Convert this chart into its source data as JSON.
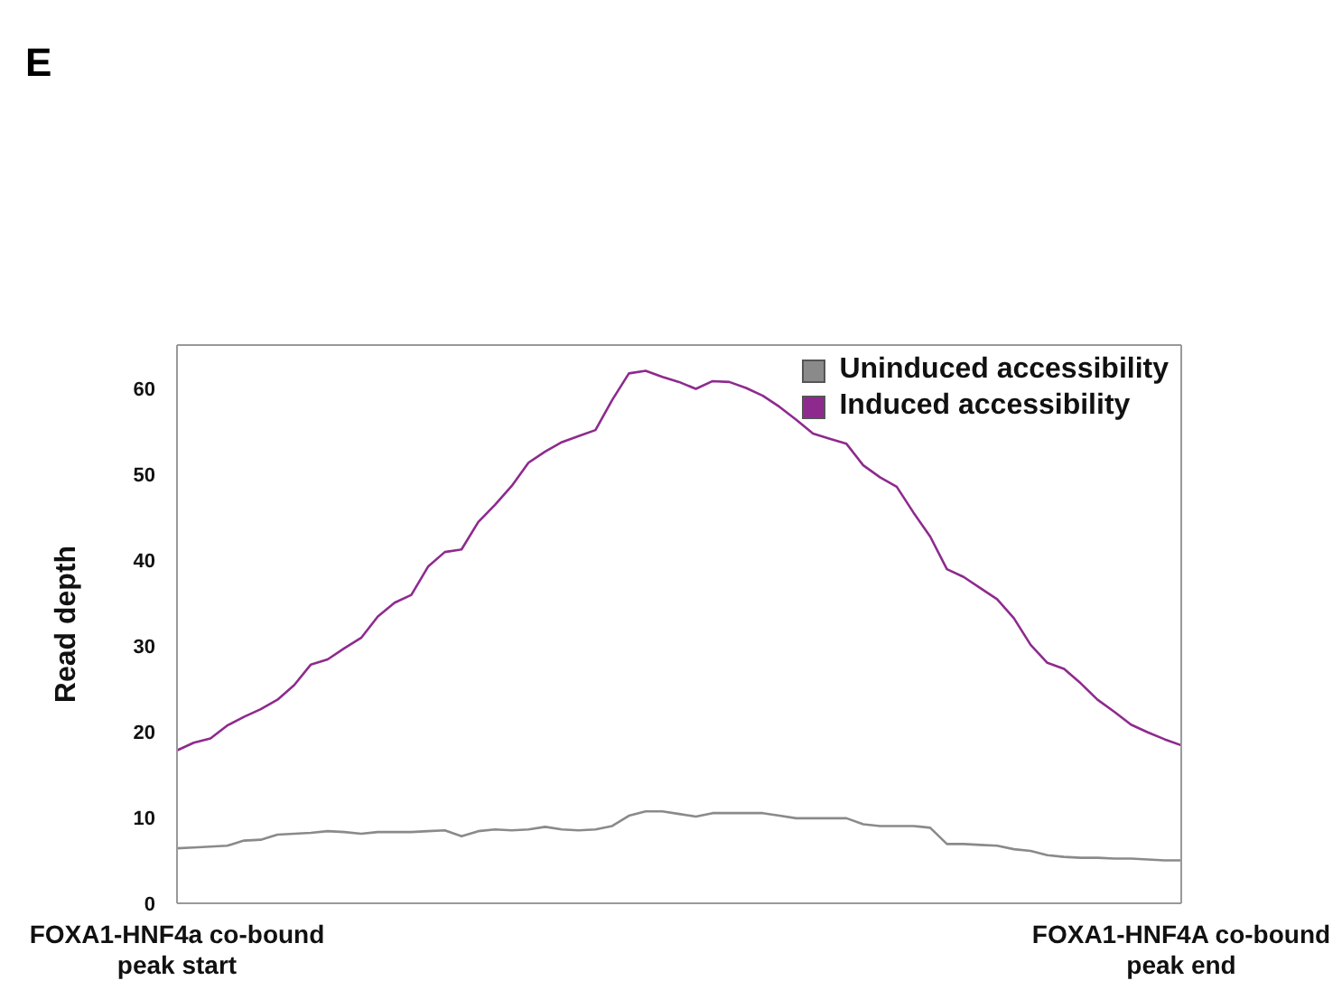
{
  "chart_data": {
    "type": "line",
    "ylabel": "Read depth",
    "annotations": [
      "E"
    ],
    "categories": [
      "FOXA1-HNF4a co-bound peak start",
      null,
      null,
      null,
      null,
      null,
      null,
      null,
      null,
      null,
      null,
      null,
      null,
      null,
      null,
      null,
      null,
      null,
      null,
      null,
      null,
      null,
      null,
      null,
      null,
      null,
      null,
      null,
      null,
      null,
      null,
      null,
      null,
      null,
      null,
      null,
      null,
      null,
      null,
      null,
      null,
      null,
      null,
      null,
      null,
      null,
      null,
      null,
      null,
      null,
      null,
      null,
      null,
      null,
      null,
      null,
      null,
      null,
      null,
      null,
      "FOXA1-HNF4A co-bound peak end"
    ],
    "ylim": [
      0,
      65
    ],
    "yticks": [
      0,
      10,
      20,
      30,
      40,
      50,
      60
    ],
    "grid": false,
    "legend": "top right",
    "marker": "none",
    "line_style": "solid",
    "series": [
      {
        "name": "Uninduced accessibility",
        "color": "#8a8a8a",
        "values": [
          6.4,
          6.5,
          6.6,
          6.7,
          7.3,
          7.4,
          8.0,
          8.1,
          8.2,
          8.4,
          8.3,
          8.1,
          8.3,
          8.3,
          8.3,
          8.4,
          8.5,
          7.8,
          8.4,
          8.6,
          8.5,
          8.6,
          8.9,
          8.6,
          8.5,
          8.6,
          9.0,
          10.2,
          10.7,
          10.7,
          10.4,
          10.1,
          10.5,
          10.5,
          10.5,
          10.5,
          10.2,
          9.9,
          9.9,
          9.9,
          9.9,
          9.2,
          9.0,
          9.0,
          9.0,
          8.8,
          6.9,
          6.9,
          6.8,
          6.7,
          6.3,
          6.1,
          5.6,
          5.4,
          5.3,
          5.3,
          5.2,
          5.2,
          5.1,
          5.0,
          5.0
        ]
      },
      {
        "name": "Induced accessibility",
        "color": "#8e2a8e",
        "values": [
          17.8,
          18.7,
          19.2,
          20.7,
          21.7,
          22.6,
          23.7,
          25.4,
          27.8,
          28.4,
          29.7,
          30.9,
          33.4,
          35.0,
          35.9,
          39.2,
          40.9,
          41.2,
          44.4,
          46.4,
          48.6,
          51.3,
          52.6,
          53.7,
          54.4,
          55.1,
          58.6,
          61.7,
          62.0,
          61.3,
          60.7,
          59.9,
          60.8,
          60.7,
          60.0,
          59.1,
          57.8,
          56.3,
          54.7,
          54.1,
          53.5,
          51.0,
          49.6,
          48.5,
          45.5,
          42.7,
          38.9,
          38.0,
          36.7,
          35.4,
          33.2,
          30.1,
          28.0,
          27.3,
          25.6,
          23.7,
          22.3,
          20.8,
          19.9,
          19.1,
          18.4
        ]
      }
    ]
  }
}
